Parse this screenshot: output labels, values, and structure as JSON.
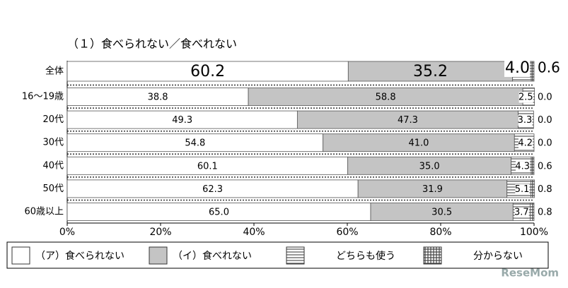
{
  "chart_data": {
    "type": "stacked-bar-horizontal",
    "title": "（１）食べられない／食べれない",
    "categories": [
      "全体",
      "16～19歳",
      "20代",
      "30代",
      "40代",
      "50代",
      "60歳以上"
    ],
    "series": [
      {
        "name": "（ア）食べられない",
        "color": "#ffffff",
        "pattern": "solid",
        "values": [
          60.2,
          38.8,
          49.3,
          54.8,
          60.1,
          62.3,
          65.0
        ],
        "value_labels": [
          "60.2",
          "38.8",
          "49.3",
          "54.8",
          "60.1",
          "62.3",
          "65.0"
        ]
      },
      {
        "name": "（イ）食べれない",
        "color": "#c4c4c4",
        "pattern": "solid",
        "values": [
          35.2,
          58.8,
          47.3,
          41.0,
          35.0,
          31.9,
          30.5
        ],
        "value_labels": [
          "35.2",
          "58.8",
          "47.3",
          "41.0",
          "35.0",
          "31.9",
          "30.5"
        ]
      },
      {
        "name": "どちらも使う",
        "color": "#555555",
        "pattern": "horizontal-lines",
        "values": [
          4.0,
          2.5,
          3.3,
          4.2,
          4.3,
          5.1,
          3.7
        ],
        "value_labels": [
          "4.0",
          "2.5",
          "3.3",
          "4.2",
          "4.3",
          "5.1",
          "3.7"
        ]
      },
      {
        "name": "分からない",
        "color": "#444444",
        "pattern": "grid",
        "values": [
          0.6,
          0.0,
          0.0,
          0.0,
          0.6,
          0.8,
          0.8
        ],
        "value_labels": [
          "0.6",
          "0.0",
          "0.0",
          "0.0",
          "0.6",
          "0.8",
          "0.8"
        ]
      }
    ],
    "xlim": [
      0,
      100
    ],
    "xticks": [
      {
        "value": 0,
        "label": "0%"
      },
      {
        "value": 20,
        "label": "20%"
      },
      {
        "value": 40,
        "label": "40%"
      },
      {
        "value": 60,
        "label": "60%"
      },
      {
        "value": 80,
        "label": "80%"
      },
      {
        "value": 100,
        "label": "100%"
      }
    ],
    "legend": "bottom",
    "watermark": "ReseMom"
  }
}
